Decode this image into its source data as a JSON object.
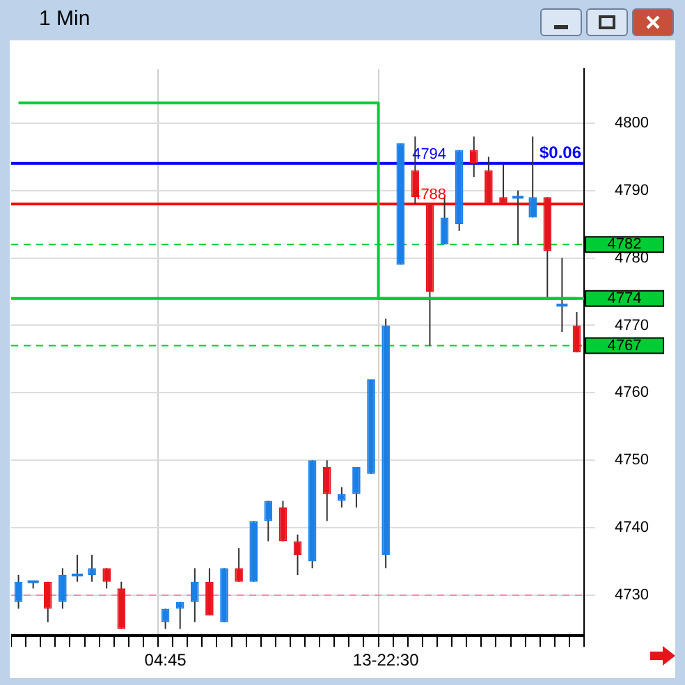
{
  "chart_data": {
    "type": "candlestick",
    "title": "1 Min",
    "categories": [
      null,
      null,
      null,
      null,
      null,
      null,
      null,
      null,
      null,
      null,
      "04:45",
      null,
      null,
      null,
      null,
      null,
      null,
      null,
      null,
      null,
      null,
      null,
      null,
      null,
      null,
      "13-22:30",
      null,
      null,
      null,
      null,
      null,
      null,
      null,
      null,
      null,
      null,
      null,
      null,
      null
    ],
    "ohlc": [
      [
        4729,
        4733,
        4728,
        4732
      ],
      [
        4732,
        4732,
        4731,
        4732
      ],
      [
        4732,
        4732,
        4726,
        4728
      ],
      [
        4729,
        4734,
        4728,
        4733
      ],
      [
        4733,
        4736,
        4732,
        4733
      ],
      [
        4733,
        4736,
        4732,
        4734
      ],
      [
        4734,
        4734,
        4731,
        4732
      ],
      [
        4731,
        4732,
        4725,
        4725
      ],
      null,
      null,
      [
        4726,
        4728,
        4725,
        4728
      ],
      [
        4728,
        4729,
        4725,
        4729
      ],
      [
        4729,
        4734,
        4726,
        4732
      ],
      [
        4732,
        4734,
        4727,
        4727
      ],
      [
        4726,
        4734,
        4726,
        4734
      ],
      [
        4734,
        4737,
        4732,
        4732
      ],
      [
        4732,
        4741,
        4732,
        4741
      ],
      [
        4741,
        4744,
        4738,
        4744
      ],
      [
        4743,
        4744,
        4738,
        4738
      ],
      [
        4738,
        4739,
        4733,
        4736
      ],
      [
        4735,
        4750,
        4734,
        4750
      ],
      [
        4749,
        4750,
        4741,
        4745
      ],
      [
        4744,
        4746,
        4743,
        4745
      ],
      [
        4745,
        4749,
        4743,
        4749
      ],
      [
        4748,
        4762,
        4748,
        4762
      ],
      [
        4736,
        4771,
        4734,
        4770
      ],
      [
        4779,
        4797,
        4779,
        4797
      ],
      [
        4793,
        4798,
        4788,
        4789
      ],
      [
        4788,
        4788,
        4767,
        4775
      ],
      [
        4782,
        4789,
        4782,
        4786
      ],
      [
        4785,
        4796,
        4784,
        4796
      ],
      [
        4796,
        4798,
        4792,
        4794
      ],
      [
        4793,
        4795,
        4788,
        4788
      ],
      [
        4789,
        4794,
        4788,
        4788
      ],
      [
        4789,
        4790,
        4782,
        4789
      ],
      [
        4786,
        4798,
        4786,
        4789
      ],
      [
        4789,
        4789,
        4774,
        4781
      ],
      [
        4773,
        4780,
        4769,
        4773
      ],
      [
        4770,
        4772,
        4766,
        4766
      ]
    ],
    "colors": [
      "#1a7fe6",
      "#1a7fe6",
      "#e8141c",
      "#1a7fe6",
      "#1a7fe6",
      "#1a7fe6",
      "#e8141c",
      "#e8141c",
      null,
      null,
      "#1a7fe6",
      "#1a7fe6",
      "#1a7fe6",
      "#e8141c",
      "#1a7fe6",
      "#e8141c",
      "#1a7fe6",
      "#1a7fe6",
      "#e8141c",
      "#e8141c",
      "#1a7fe6",
      "#e8141c",
      "#1a7fe6",
      "#1a7fe6",
      "#1a7fe6",
      "#1a7fe6",
      "#1a7fe6",
      "#e8141c",
      "#e8141c",
      "#1a7fe6",
      "#1a7fe6",
      "#e8141c",
      "#e8141c",
      "#e8141c",
      "#1a7fe6",
      "#1a7fe6",
      "#e8141c",
      "#1a7fe6",
      "#e8141c"
    ],
    "series": [
      {
        "type": "step",
        "color": "#00cc33",
        "values": [
          4803,
          4803,
          4803,
          4803,
          4803,
          4803,
          4803,
          4803,
          4803,
          4803,
          4803,
          4803,
          4803,
          4803,
          4803,
          4803,
          4803,
          4803,
          4803,
          4803,
          4803,
          4803,
          4803,
          4803,
          4803,
          4774,
          4774,
          4774,
          4774,
          4774,
          4774,
          4774,
          4774,
          4774,
          4774,
          4774,
          4774,
          4774,
          4774
        ]
      }
    ],
    "ylim": [
      4724,
      4808
    ],
    "yticks": [
      4730,
      4740,
      4750,
      4760,
      4770,
      4780,
      4790,
      4800
    ],
    "grid": true,
    "legend": false,
    "ref_lines": [
      {
        "axis": "y",
        "value": 4794,
        "label": "4794",
        "color": "#0000ff"
      },
      {
        "axis": "y",
        "value": 4788,
        "label": "4788",
        "color": "#ff0000"
      },
      {
        "axis": "y",
        "value": 4782,
        "label": "4782",
        "color": "#00cc33",
        "line_style": "dashed"
      },
      {
        "axis": "y",
        "value": 4774,
        "label": "4774",
        "color": "#00cc33"
      },
      {
        "axis": "y",
        "value": 4767,
        "label": "4767",
        "color": "#00cc33",
        "line_style": "dashed"
      },
      {
        "axis": "y",
        "value": 4730,
        "color": "#f08cb0",
        "line_style": "dashed"
      }
    ],
    "annotations": [
      {
        "text": "$0.06",
        "y": 4794
      }
    ]
  }
}
